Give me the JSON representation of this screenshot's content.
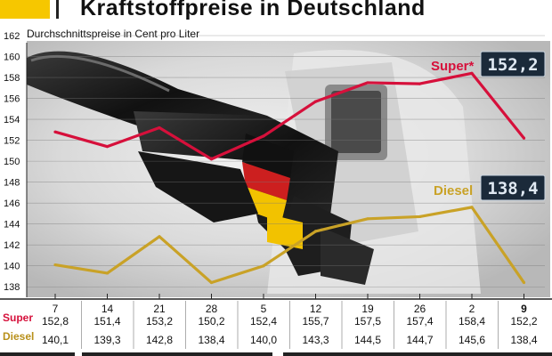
{
  "title": "Kraftstoffpreise in Deutschland",
  "colors": {
    "super": "#d6103b",
    "diesel": "#c9a227",
    "accent": "#f6c700",
    "display_bg": "#1b2a3a",
    "display_text": "#dfe8f2"
  },
  "chart_data": {
    "type": "line",
    "title": "Kraftstoffpreise in Deutschland",
    "ylabel": "Durchschnittspreise in Cent pro Liter",
    "ylim": [
      137,
      162
    ],
    "yticks": [
      138,
      140,
      142,
      144,
      146,
      148,
      150,
      152,
      154,
      156,
      158,
      160,
      162
    ],
    "categories": [
      "7",
      "14",
      "21",
      "28",
      "5",
      "12",
      "19",
      "26",
      "2",
      "9"
    ],
    "series": [
      {
        "name": "Super*",
        "display": "152,2",
        "values": [
          152.8,
          151.4,
          153.2,
          150.2,
          152.4,
          155.7,
          157.5,
          157.4,
          158.4,
          152.2
        ],
        "labels": [
          "152,8",
          "151,4",
          "153,2",
          "150,2",
          "152,4",
          "155,7",
          "157,5",
          "157,4",
          "158,4",
          "152,2"
        ]
      },
      {
        "name": "Diesel",
        "display": "138,4",
        "values": [
          140.1,
          139.3,
          142.8,
          138.4,
          140.0,
          143.3,
          144.5,
          144.7,
          145.6,
          138.4
        ],
        "labels": [
          "140,1",
          "139,3",
          "142,8",
          "138,4",
          "140,0",
          "143,3",
          "144,5",
          "144,7",
          "145,6",
          "138,4"
        ]
      }
    ],
    "row_labels": {
      "super": "Super",
      "diesel": "Diesel"
    },
    "grid": true
  }
}
